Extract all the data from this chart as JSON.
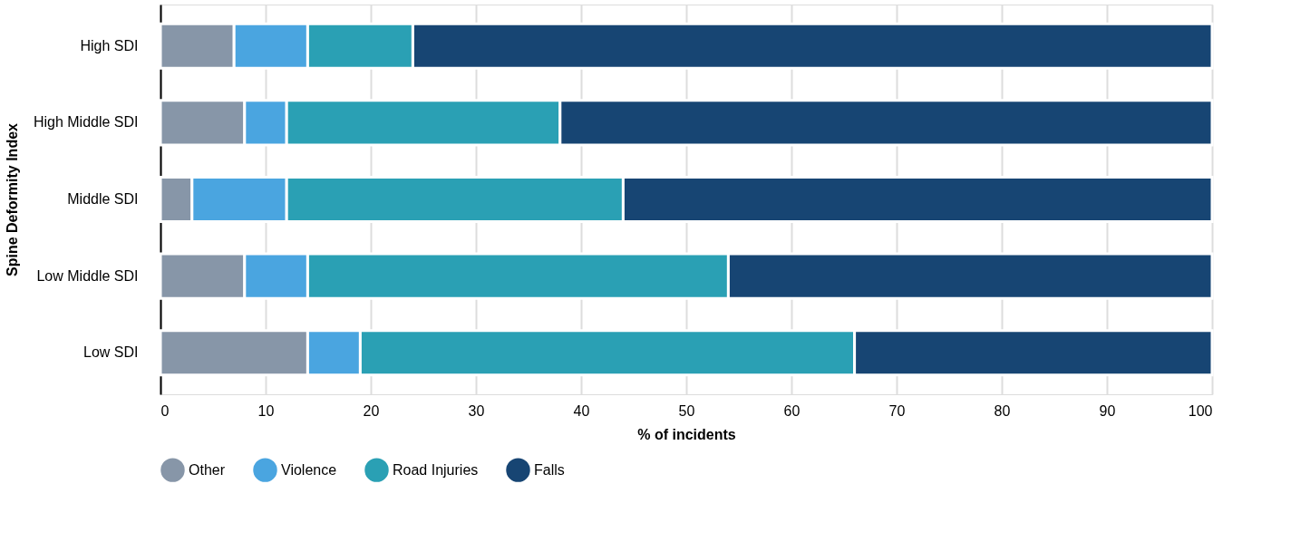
{
  "chart_data": {
    "type": "bar",
    "orientation": "horizontal",
    "stacked": true,
    "xlabel": "% of incidents",
    "ylabel": "Spine Deformity Index",
    "categories": [
      "High SDI",
      "High Middle SDI",
      "Middle SDI",
      "Low Middle SDI",
      "Low SDI"
    ],
    "series": [
      {
        "name": "Other",
        "color": "#8796a8",
        "values": [
          7,
          8,
          3,
          8,
          14
        ]
      },
      {
        "name": "Violence",
        "color": "#4aa5e0",
        "values": [
          7,
          4,
          9,
          6,
          5
        ]
      },
      {
        "name": "Road Injuries",
        "color": "#2aa0b4",
        "values": [
          10,
          26,
          32,
          40,
          47
        ]
      },
      {
        "name": "Falls",
        "color": "#174573",
        "values": [
          76,
          62,
          56,
          46,
          34
        ]
      }
    ],
    "xlim": [
      0,
      100
    ],
    "xticks": [
      0,
      10,
      20,
      30,
      40,
      50,
      60,
      70,
      80,
      90,
      100
    ],
    "grid": "x",
    "legend": "bottom"
  }
}
